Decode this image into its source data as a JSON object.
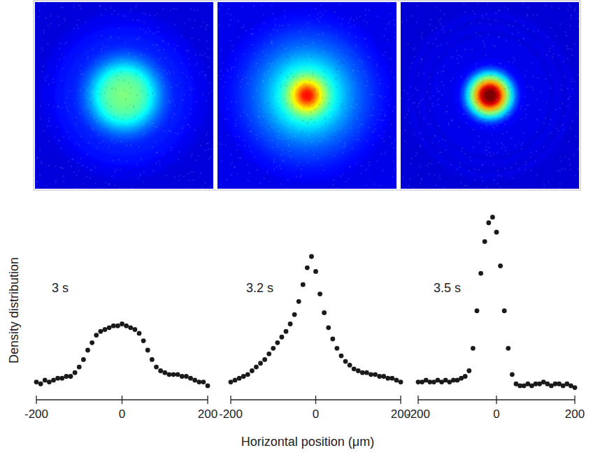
{
  "chart_data": [
    {
      "type": "scatter",
      "title": "3 s",
      "ylabel": "Density distribution",
      "color": "#1a1a1a",
      "marker": "circle",
      "x": [
        -200,
        -190,
        -180,
        -170,
        -160,
        -150,
        -140,
        -130,
        -120,
        -110,
        -100,
        -90,
        -80,
        -70,
        -60,
        -50,
        -40,
        -30,
        -20,
        -10,
        0,
        10,
        20,
        30,
        40,
        50,
        60,
        70,
        80,
        90,
        100,
        110,
        120,
        130,
        140,
        150,
        160,
        170,
        180,
        190,
        200
      ],
      "values": [
        0.08,
        0.07,
        0.09,
        0.08,
        0.09,
        0.1,
        0.1,
        0.11,
        0.11,
        0.13,
        0.16,
        0.2,
        0.25,
        0.29,
        0.33,
        0.35,
        0.36,
        0.37,
        0.38,
        0.38,
        0.39,
        0.38,
        0.37,
        0.36,
        0.34,
        0.3,
        0.25,
        0.2,
        0.16,
        0.14,
        0.13,
        0.12,
        0.12,
        0.12,
        0.11,
        0.11,
        0.1,
        0.09,
        0.08,
        0.08,
        0.06
      ],
      "xlim": [
        -200,
        200
      ],
      "xticks": [
        -200,
        0,
        200
      ],
      "ylim": [
        0,
        1
      ],
      "tick_labels": "x"
    },
    {
      "type": "scatter",
      "title": "3.2 s",
      "xlabel": "Horizontal position (μm)",
      "color": "#1a1a1a",
      "marker": "circle",
      "x": [
        -200,
        -190,
        -180,
        -170,
        -160,
        -150,
        -140,
        -130,
        -120,
        -110,
        -100,
        -90,
        -80,
        -70,
        -60,
        -50,
        -40,
        -30,
        -20,
        -10,
        0,
        10,
        20,
        30,
        40,
        50,
        60,
        70,
        80,
        90,
        100,
        110,
        120,
        130,
        140,
        150,
        160,
        170,
        180,
        190,
        200
      ],
      "values": [
        0.08,
        0.09,
        0.1,
        0.11,
        0.12,
        0.14,
        0.16,
        0.18,
        0.2,
        0.23,
        0.26,
        0.29,
        0.32,
        0.35,
        0.39,
        0.44,
        0.51,
        0.6,
        0.69,
        0.75,
        0.67,
        0.55,
        0.45,
        0.37,
        0.31,
        0.26,
        0.22,
        0.19,
        0.17,
        0.15,
        0.14,
        0.13,
        0.13,
        0.12,
        0.12,
        0.11,
        0.11,
        0.1,
        0.1,
        0.09,
        0.08
      ],
      "xlim": [
        -200,
        200
      ],
      "xticks": [
        -200,
        0,
        200
      ],
      "ylim": [
        0,
        1
      ],
      "tick_labels": "x"
    },
    {
      "type": "scatter",
      "title": "3.5 s",
      "color": "#1a1a1a",
      "marker": "circle",
      "x": [
        -200,
        -190,
        -180,
        -170,
        -160,
        -150,
        -140,
        -130,
        -120,
        -110,
        -100,
        -90,
        -80,
        -70,
        -60,
        -50,
        -40,
        -30,
        -20,
        -10,
        0,
        10,
        20,
        30,
        40,
        50,
        60,
        70,
        80,
        90,
        100,
        110,
        120,
        130,
        140,
        150,
        160,
        170,
        180,
        190,
        200
      ],
      "values": [
        0.08,
        0.08,
        0.09,
        0.08,
        0.08,
        0.09,
        0.08,
        0.09,
        0.08,
        0.09,
        0.09,
        0.1,
        0.11,
        0.14,
        0.26,
        0.46,
        0.66,
        0.83,
        0.93,
        0.96,
        0.88,
        0.7,
        0.46,
        0.26,
        0.12,
        0.07,
        0.06,
        0.06,
        0.07,
        0.06,
        0.07,
        0.07,
        0.08,
        0.07,
        0.06,
        0.07,
        0.07,
        0.06,
        0.07,
        0.06,
        0.05
      ],
      "xlim": [
        -200,
        200
      ],
      "xticks": [
        -200,
        0,
        200
      ],
      "ylim": [
        0,
        1
      ],
      "tick_labels": "x"
    }
  ]
}
